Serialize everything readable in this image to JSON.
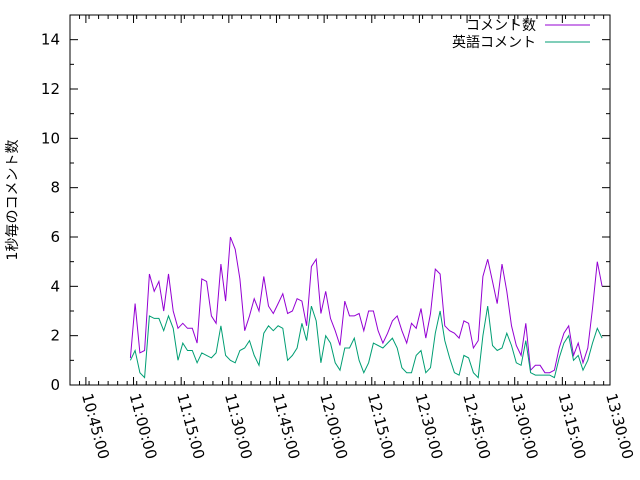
{
  "chart_data": {
    "type": "line",
    "title": "",
    "xlabel": "",
    "ylabel": "1秒毎のコメント数",
    "xlim": [
      "10:40:00",
      "13:30:00"
    ],
    "ylim": [
      0,
      15
    ],
    "x_ticks": [
      "10:45:00",
      "11:00:00",
      "11:15:00",
      "11:30:00",
      "11:45:00",
      "12:00:00",
      "12:15:00",
      "12:30:00",
      "12:45:00",
      "13:00:00",
      "13:15:00",
      "13:30:00"
    ],
    "y_ticks": [
      0,
      2,
      4,
      6,
      8,
      10,
      12,
      14
    ],
    "grid": false,
    "legend": "top-right",
    "x_start": "10:59:00",
    "x_step_minutes": 1.5,
    "series": [
      {
        "name": "コメント数",
        "color": "#9400d3",
        "values": [
          1.1,
          3.3,
          1.3,
          1.4,
          4.5,
          3.8,
          4.2,
          3.0,
          4.5,
          3.0,
          2.3,
          2.5,
          2.3,
          2.3,
          1.7,
          4.3,
          4.2,
          2.8,
          2.5,
          4.9,
          3.4,
          6.0,
          5.5,
          4.3,
          2.2,
          2.8,
          3.5,
          3.0,
          4.4,
          3.2,
          2.9,
          3.3,
          3.7,
          2.9,
          3.0,
          3.5,
          3.4,
          2.4,
          4.8,
          5.1,
          2.9,
          3.8,
          2.7,
          2.2,
          1.6,
          3.4,
          2.8,
          2.8,
          2.9,
          2.2,
          3.0,
          3.0,
          2.2,
          1.7,
          2.1,
          2.6,
          2.8,
          2.2,
          1.7,
          2.5,
          2.3,
          3.1,
          1.9,
          2.9,
          4.7,
          4.5,
          2.4,
          2.2,
          2.1,
          1.9,
          2.6,
          2.5,
          1.5,
          1.8,
          4.4,
          5.1,
          4.2,
          3.3,
          4.9,
          3.8,
          2.4,
          1.6,
          1.2,
          2.5,
          0.6,
          0.8,
          0.8,
          0.5,
          0.5,
          0.6,
          1.5,
          2.1,
          2.4,
          1.2,
          1.7,
          0.9,
          1.5,
          3.1,
          5.0,
          4.0
        ]
      },
      {
        "name": "英語コメント",
        "color": "#009e73",
        "values": [
          1.0,
          1.4,
          0.5,
          0.3,
          2.8,
          2.7,
          2.7,
          2.2,
          2.8,
          2.3,
          1.0,
          1.7,
          1.4,
          1.4,
          0.9,
          1.3,
          1.2,
          1.1,
          1.3,
          2.4,
          1.2,
          1.0,
          0.9,
          1.4,
          1.5,
          1.8,
          1.2,
          0.8,
          2.1,
          2.4,
          2.2,
          2.4,
          2.3,
          1.0,
          1.2,
          1.5,
          2.5,
          1.8,
          3.2,
          2.6,
          0.9,
          2.0,
          1.7,
          0.9,
          0.6,
          1.5,
          1.5,
          1.9,
          1.0,
          0.5,
          0.9,
          1.7,
          1.6,
          1.5,
          1.7,
          1.9,
          1.5,
          0.7,
          0.5,
          0.5,
          1.2,
          1.4,
          0.5,
          0.7,
          2.1,
          3.0,
          1.8,
          1.1,
          0.5,
          0.4,
          1.2,
          1.1,
          0.5,
          0.3,
          2.0,
          3.2,
          1.6,
          1.4,
          1.5,
          2.1,
          1.6,
          0.9,
          0.8,
          1.8,
          0.5,
          0.4,
          0.4,
          0.4,
          0.4,
          0.3,
          1.1,
          1.7,
          2.0,
          1.0,
          1.2,
          0.6,
          1.0,
          1.7,
          2.3,
          1.9
        ]
      }
    ]
  }
}
